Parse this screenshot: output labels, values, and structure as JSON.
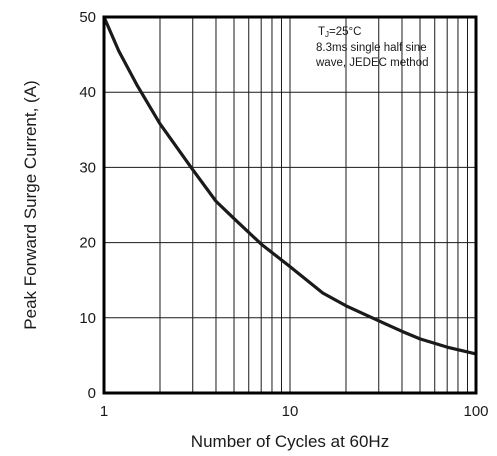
{
  "chart_data": {
    "type": "line",
    "title": "",
    "xlabel": "Number of Cycles at 60Hz",
    "ylabel": "Peak Forward Surge Current, (A)",
    "x_scale": "log",
    "xlim": [
      1,
      100
    ],
    "ylim": [
      0,
      50
    ],
    "x_ticks": [
      1,
      10,
      100
    ],
    "x_tick_labels": [
      "1",
      "10",
      "100"
    ],
    "y_ticks": [
      0,
      10,
      20,
      30,
      40,
      50
    ],
    "y_tick_labels": [
      "0",
      "10",
      "20",
      "30",
      "40",
      "50"
    ],
    "grid": true,
    "legend": "none",
    "annotation_lines": [
      "TJ=25°C",
      "8.3ms single half sine",
      "wave, JEDEC method"
    ],
    "series": [
      {
        "x": [
          1,
          1.2,
          1.5,
          2,
          3,
          4,
          5,
          7,
          10,
          15,
          20,
          30,
          40,
          50,
          70,
          100
        ],
        "y": [
          50,
          45.5,
          41,
          35.8,
          29.7,
          25.5,
          23.2,
          19.8,
          16.8,
          13.3,
          11.6,
          9.6,
          8.2,
          7.2,
          6.1,
          5.2
        ]
      }
    ],
    "colors": {
      "line": "#1a1a1a",
      "grid": "#1a1a1a",
      "frame": "#000000"
    }
  }
}
